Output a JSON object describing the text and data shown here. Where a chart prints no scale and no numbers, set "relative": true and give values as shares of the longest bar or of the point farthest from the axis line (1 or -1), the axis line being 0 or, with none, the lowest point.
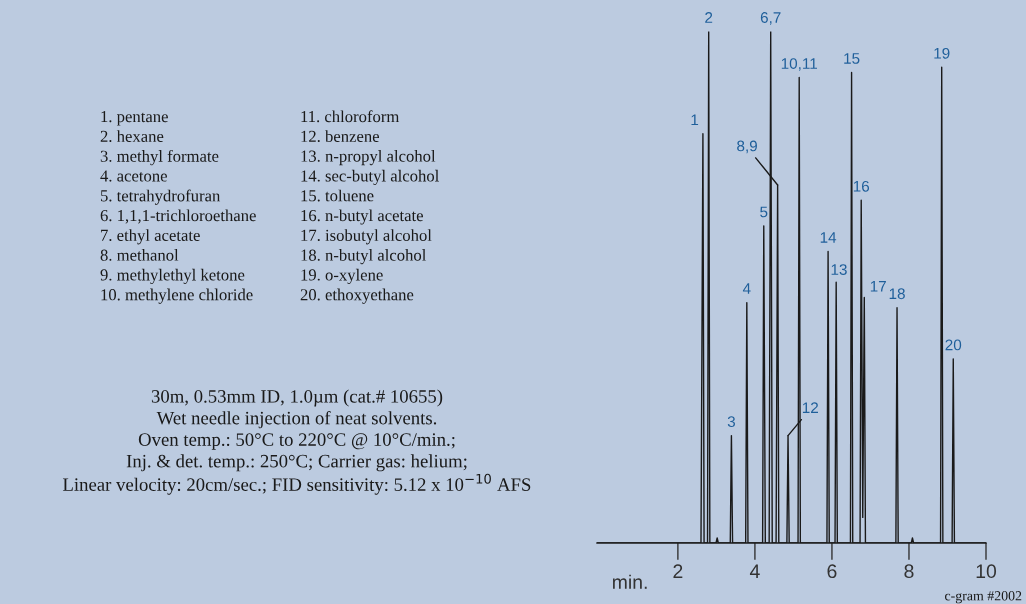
{
  "chart_data": {
    "type": "line",
    "relative": true,
    "xlabel": "min.",
    "xlim": [
      -0.1,
      10.0
    ],
    "xticks": [
      2,
      4,
      6,
      8,
      10
    ],
    "grid": false,
    "legend": false,
    "marker": "none",
    "line_style": "solid",
    "x": [
      -0.1,
      2.6,
      2.65,
      2.68,
      2.77,
      2.8,
      2.83,
      2.99,
      3.02,
      3.05,
      3.36,
      3.39,
      3.42,
      3.76,
      3.79,
      3.82,
      4.2,
      4.23,
      4.27,
      4.37,
      4.41,
      4.45,
      4.55,
      4.59,
      4.62,
      4.83,
      4.86,
      4.89,
      5.12,
      5.15,
      5.18,
      5.87,
      5.9,
      5.93,
      6.08,
      6.11,
      6.14,
      6.48,
      6.51,
      6.54,
      6.73,
      6.76,
      6.8,
      6.84,
      6.87,
      7.66,
      7.69,
      7.72,
      8.06,
      8.09,
      8.12,
      8.82,
      8.85,
      8.88,
      9.12,
      9.15,
      9.18,
      10.0
    ],
    "series": [
      {
        "color": "#1a1a1a",
        "values": [
          0,
          0,
          0.8,
          0,
          0,
          1,
          0,
          0,
          0.01,
          0,
          0,
          0.21,
          0,
          0,
          0.47,
          0,
          0,
          0.62,
          0,
          0,
          1,
          0,
          0,
          0.7,
          0,
          0,
          0.21,
          0,
          0,
          0.91,
          0,
          0,
          0.57,
          0,
          0,
          0.51,
          0,
          0,
          0.92,
          0,
          0,
          0.67,
          0.05,
          0.48,
          0,
          0,
          0.46,
          0,
          0,
          0.01,
          0,
          0,
          0.93,
          0,
          0,
          0.36,
          0,
          0
        ]
      }
    ],
    "annotations": [
      {
        "text": "1",
        "x": 2.65,
        "y": 0.8
      },
      {
        "text": "2",
        "x": 2.8,
        "y": 1
      },
      {
        "text": "3",
        "x": 3.39,
        "y": 0.21
      },
      {
        "text": "4",
        "x": 3.79,
        "y": 0.47
      },
      {
        "text": "5",
        "x": 4.23,
        "y": 0.62
      },
      {
        "text": "6,7",
        "x": 4.41,
        "y": 1
      },
      {
        "text": "8,9",
        "x": 4.59,
        "y": 0.7
      },
      {
        "text": "12",
        "x": 4.86,
        "y": 0.21
      },
      {
        "text": "10,11",
        "x": 5.15,
        "y": 0.91
      },
      {
        "text": "14",
        "x": 5.9,
        "y": 0.57
      },
      {
        "text": "13",
        "x": 6.11,
        "y": 0.51
      },
      {
        "text": "15",
        "x": 6.51,
        "y": 0.92
      },
      {
        "text": "16",
        "x": 6.76,
        "y": 0.67
      },
      {
        "text": "17",
        "x": 6.84,
        "y": 0.48
      },
      {
        "text": "18",
        "x": 7.69,
        "y": 0.46
      },
      {
        "text": "19",
        "x": 8.85,
        "y": 0.93
      },
      {
        "text": "20",
        "x": 9.15,
        "y": 0.36
      },
      "1. pentane",
      "2. hexane",
      "3. methyl formate",
      "4. acetone",
      "5. tetrahydrofuran",
      "6. 1,1,1-trichloroethane",
      "7. ethyl acetate",
      "8. methanol",
      "9. methylethyl ketone",
      "10. methylene chloride",
      "11. chloroform",
      "12. benzene",
      "13. n-propyl alcohol",
      "14. sec-butyl alcohol",
      "15. toluene",
      "16. n-butyl acetate",
      "17. isobutyl alcohol",
      "18. n-butyl alcohol",
      "19. o-xylene",
      "20. ethoxyethane",
      "30m, 0.53mm ID, 1.0µm (cat.# 10655)",
      "Wet needle injection of neat solvents.",
      "Oven temp.: 50°C to 220°C @ 10°C/min.;",
      "Inj. & det. temp.: 250°C; Carrier gas: helium;",
      "Linear velocity: 20cm/sec.; FID sensitivity: 5.12 x 10$^{−10}$ AFS",
      "c-gram #2002"
    ]
  }
}
